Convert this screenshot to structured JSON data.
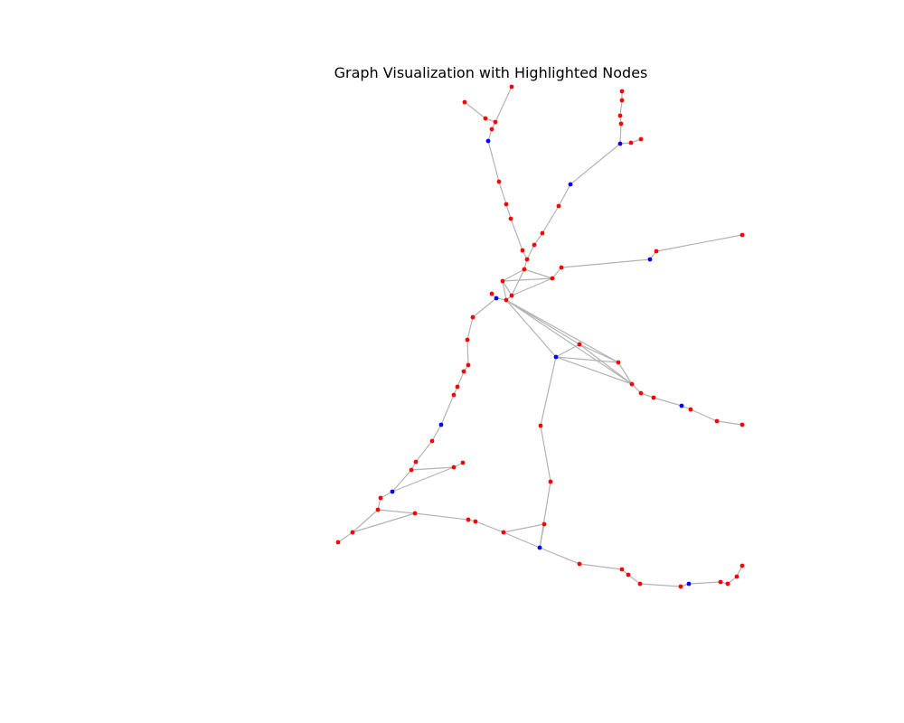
{
  "title": "Graph Visualization with Highlighted Nodes",
  "colors": {
    "edge": "#b3b3b3",
    "normal": "#ff0000",
    "highlighted": "#0000ff"
  },
  "graph": {
    "nodes": [
      {
        "id": 1,
        "hl": false
      },
      {
        "id": 2,
        "hl": false
      },
      {
        "id": 3,
        "hl": false
      },
      {
        "id": 4,
        "hl": false
      },
      {
        "id": 5,
        "hl": true
      },
      {
        "id": 6,
        "hl": false
      },
      {
        "id": 7,
        "hl": false
      },
      {
        "id": 8,
        "hl": false
      },
      {
        "id": 9,
        "hl": false
      },
      {
        "id": 10,
        "hl": false
      },
      {
        "id": 11,
        "hl": false
      },
      {
        "id": 12,
        "hl": false
      },
      {
        "id": 13,
        "hl": false
      },
      {
        "id": 14,
        "hl": false
      },
      {
        "id": 15,
        "hl": false
      },
      {
        "id": 16,
        "hl": true
      },
      {
        "id": 17,
        "hl": false
      },
      {
        "id": 18,
        "hl": false
      },
      {
        "id": 19,
        "hl": false
      },
      {
        "id": 20,
        "hl": false
      },
      {
        "id": 21,
        "hl": false
      },
      {
        "id": 22,
        "hl": false
      },
      {
        "id": 23,
        "hl": false
      },
      {
        "id": 24,
        "hl": false
      },
      {
        "id": 25,
        "hl": false
      },
      {
        "id": 26,
        "hl": false
      },
      {
        "id": 27,
        "hl": true
      },
      {
        "id": 28,
        "hl": false
      },
      {
        "id": 29,
        "hl": false
      },
      {
        "id": 30,
        "hl": false
      },
      {
        "id": 31,
        "hl": false
      },
      {
        "id": 32,
        "hl": false
      },
      {
        "id": 33,
        "hl": true
      },
      {
        "id": 34,
        "hl": false
      },
      {
        "id": 35,
        "hl": false
      },
      {
        "id": 36,
        "hl": false
      },
      {
        "id": 37,
        "hl": true
      },
      {
        "id": 38,
        "hl": false
      },
      {
        "id": 39,
        "hl": false
      },
      {
        "id": 40,
        "hl": false
      },
      {
        "id": 41,
        "hl": false
      },
      {
        "id": 42,
        "hl": false
      },
      {
        "id": 43,
        "hl": false
      },
      {
        "id": 44,
        "hl": false
      },
      {
        "id": 45,
        "hl": false
      },
      {
        "id": 46,
        "hl": false
      },
      {
        "id": 47,
        "hl": false
      },
      {
        "id": 48,
        "hl": true
      },
      {
        "id": 49,
        "hl": false
      },
      {
        "id": 50,
        "hl": false
      },
      {
        "id": 51,
        "hl": false
      },
      {
        "id": 52,
        "hl": false
      },
      {
        "id": 53,
        "hl": true
      },
      {
        "id": 54,
        "hl": false
      },
      {
        "id": 55,
        "hl": false
      },
      {
        "id": 56,
        "hl": false
      },
      {
        "id": 57,
        "hl": false
      },
      {
        "id": 58,
        "hl": false
      },
      {
        "id": 59,
        "hl": false
      },
      {
        "id": 60,
        "hl": false
      },
      {
        "id": 61,
        "hl": false
      },
      {
        "id": 62,
        "hl": false
      },
      {
        "id": 63,
        "hl": false
      },
      {
        "id": 64,
        "hl": false
      },
      {
        "id": 65,
        "hl": false
      },
      {
        "id": 66,
        "hl": false
      },
      {
        "id": 67,
        "hl": true
      },
      {
        "id": 68,
        "hl": false
      },
      {
        "id": 69,
        "hl": false
      },
      {
        "id": 70,
        "hl": false
      },
      {
        "id": 71,
        "hl": false
      },
      {
        "id": 72,
        "hl": false
      },
      {
        "id": 73,
        "hl": false
      },
      {
        "id": 74,
        "hl": false
      },
      {
        "id": 75,
        "hl": false
      },
      {
        "id": 76,
        "hl": false
      },
      {
        "id": 77,
        "hl": true
      },
      {
        "id": 78,
        "hl": false
      },
      {
        "id": 79,
        "hl": false
      },
      {
        "id": 80,
        "hl": false
      },
      {
        "id": 81,
        "hl": false
      },
      {
        "id": 82,
        "hl": false
      },
      {
        "id": 83,
        "hl": false
      },
      {
        "id": 84,
        "hl": false
      },
      {
        "id": 85,
        "hl": false
      },
      {
        "id": 86,
        "hl": false
      },
      {
        "id": 87,
        "hl": false
      },
      {
        "id": 88,
        "hl": false
      }
    ],
    "edges": [
      [
        0,
        1
      ],
      [
        1,
        2
      ],
      [
        1,
        3
      ],
      [
        3,
        4
      ],
      [
        4,
        5
      ],
      [
        5,
        6
      ],
      [
        6,
        7
      ],
      [
        7,
        8
      ],
      [
        8,
        9
      ],
      [
        9,
        10
      ],
      [
        10,
        11
      ],
      [
        11,
        12
      ],
      [
        12,
        13
      ],
      [
        13,
        14
      ],
      [
        14,
        15
      ],
      [
        15,
        16
      ],
      [
        16,
        17
      ],
      [
        17,
        18
      ],
      [
        16,
        19
      ],
      [
        16,
        20
      ],
      [
        19,
        20
      ],
      [
        20,
        21
      ],
      [
        20,
        22
      ],
      [
        20,
        23
      ],
      [
        19,
        21
      ],
      [
        21,
        22
      ],
      [
        22,
        23
      ],
      [
        23,
        24
      ],
      [
        24,
        25
      ],
      [
        24,
        26
      ],
      [
        25,
        26
      ],
      [
        26,
        27
      ],
      [
        27,
        28
      ],
      [
        29,
        30
      ],
      [
        30,
        31
      ],
      [
        31,
        32
      ],
      [
        32,
        33
      ],
      [
        33,
        34
      ],
      [
        34,
        35
      ],
      [
        35,
        36
      ],
      [
        36,
        37
      ],
      [
        37,
        38
      ],
      [
        38,
        39
      ],
      [
        39,
        40
      ],
      [
        40,
        41
      ],
      [
        41,
        42
      ],
      [
        42,
        43
      ],
      [
        43,
        44
      ],
      [
        44,
        45
      ],
      [
        45,
        46
      ],
      [
        46,
        47
      ],
      [
        47,
        48
      ],
      [
        48,
        49
      ],
      [
        43,
        50
      ],
      [
        50,
        51
      ],
      [
        51,
        52
      ],
      [
        52,
        53
      ],
      [
        53,
        54
      ],
      [
        54,
        55
      ],
      [
        55,
        56
      ],
      [
        56,
        57
      ],
      [
        57,
        58
      ],
      [
        52,
        59
      ],
      [
        59,
        60
      ],
      [
        60,
        61
      ],
      [
        61,
        62
      ],
      [
        62,
        63
      ],
      [
        63,
        64
      ],
      [
        64,
        65
      ],
      [
        65,
        66
      ],
      [
        66,
        67
      ],
      [
        67,
        68
      ],
      [
        68,
        69
      ],
      [
        52,
        70
      ],
      [
        70,
        71
      ],
      [
        71,
        72
      ],
      [
        72,
        73
      ],
      [
        73,
        74
      ],
      [
        74,
        75
      ],
      [
        62,
        76
      ],
      [
        76,
        77
      ],
      [
        77,
        78
      ],
      [
        78,
        79
      ],
      [
        79,
        80
      ],
      [
        80,
        81
      ],
      [
        33,
        82
      ],
      [
        82,
        83
      ],
      [
        82,
        84
      ],
      [
        83,
        84
      ],
      [
        10,
        85
      ],
      [
        85,
        86
      ],
      [
        86,
        87
      ],
      [
        54,
        62
      ],
      [
        56,
        62
      ],
      [
        45,
        49
      ],
      [
        48,
        50
      ],
      [
        41,
        43
      ],
      [
        40,
        42
      ],
      [
        57,
        70
      ],
      [
        59,
        71
      ],
      [
        44,
        76
      ],
      [
        58,
        59
      ]
    ]
  }
}
